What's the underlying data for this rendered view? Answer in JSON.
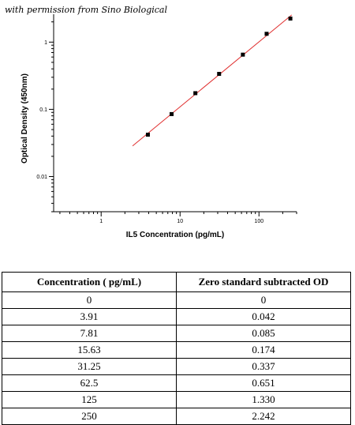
{
  "watermark": "with permission from Sino Biological",
  "chart_data": {
    "type": "scatter",
    "title": "",
    "xlabel": "IL5 Concentration (pg/mL)",
    "ylabel": "Optical Density (450nm)",
    "x_scale": "log",
    "y_scale": "log",
    "xlim": [
      0.25,
      300
    ],
    "ylim": [
      0.003,
      2.6
    ],
    "x_ticks": [
      1,
      10,
      100
    ],
    "x_tick_labels": [
      "1",
      "10",
      "100"
    ],
    "y_ticks": [
      0.01,
      0.1,
      1
    ],
    "y_tick_labels": [
      "0.01",
      "0.1",
      "1"
    ],
    "grid": false,
    "series": [
      {
        "x": [
          3.91,
          7.81,
          15.63,
          31.25,
          62.5,
          125,
          250
        ],
        "y": [
          0.042,
          0.085,
          0.174,
          0.337,
          0.651,
          1.33,
          2.242
        ],
        "color": "#000000"
      }
    ],
    "fit_line": {
      "x_start": 2.5,
      "x_end": 260,
      "color": "#e03030"
    }
  },
  "table": {
    "headers": [
      "Concentration ( pg/mL)",
      "Zero standard subtracted OD"
    ],
    "rows": [
      [
        "0",
        "0"
      ],
      [
        "3.91",
        "0.042"
      ],
      [
        "7.81",
        "0.085"
      ],
      [
        "15.63",
        "0.174"
      ],
      [
        "31.25",
        "0.337"
      ],
      [
        "62.5",
        "0.651"
      ],
      [
        "125",
        "1.330"
      ],
      [
        "250",
        "2.242"
      ]
    ]
  }
}
